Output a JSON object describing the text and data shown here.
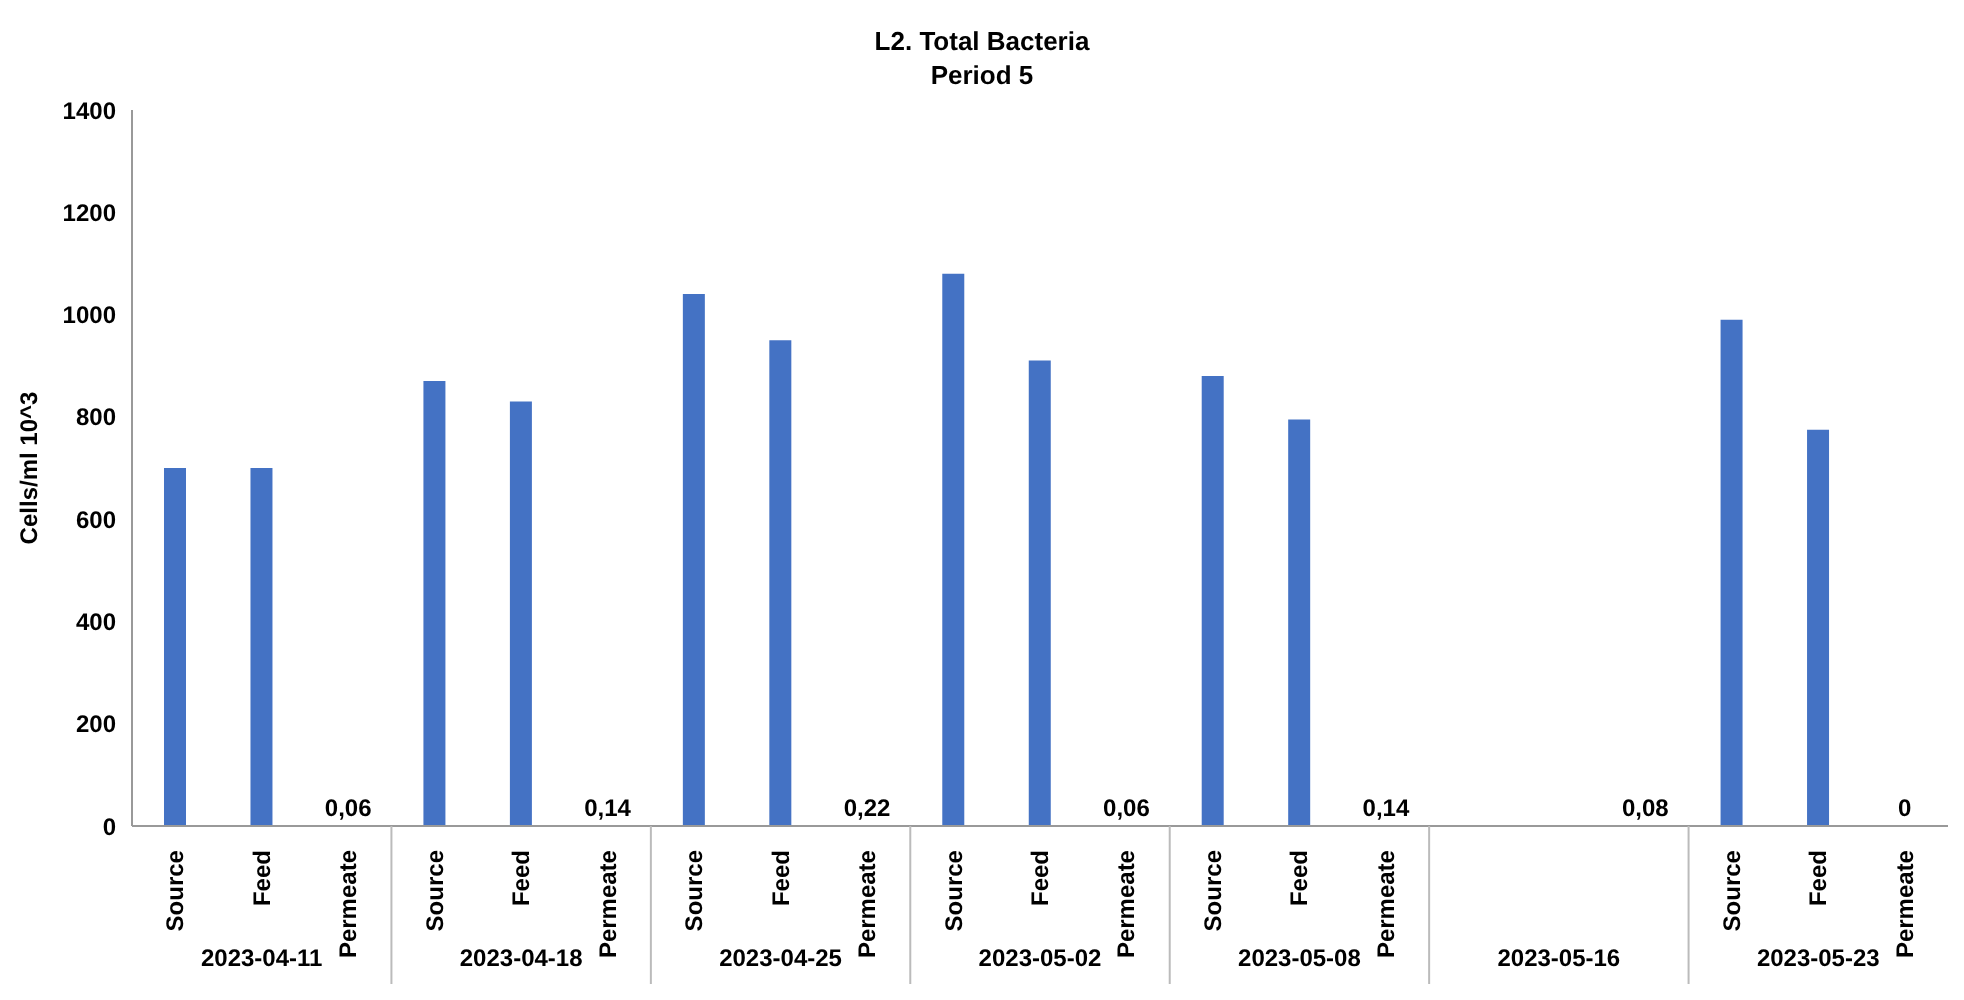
{
  "chart_data": {
    "type": "bar",
    "title": "L2. Total Bacteria",
    "subtitle": "Period 5",
    "ylabel": "Cells/ml 10^3",
    "categories": [
      "Source",
      "Feed",
      "Permeate",
      "Source",
      "Feed",
      "Permeate",
      "Source",
      "Feed",
      "Permeate",
      "Source",
      "Feed",
      "Permeate",
      "Source",
      "Feed",
      "Permeate",
      null,
      null,
      null,
      "Source",
      "Feed",
      "Permeate"
    ],
    "annotations": [
      "2023-04-11",
      "2023-04-18",
      "2023-04-25",
      "2023-05-02",
      "2023-05-08",
      "2023-05-16",
      "2023-05-23"
    ],
    "series": [
      {
        "color": "#4472c4",
        "values": [
          700,
          700,
          0.06,
          870,
          830,
          0.14,
          1040,
          950,
          0.22,
          1080,
          910,
          0.06,
          880,
          795,
          0.14,
          null,
          null,
          0.08,
          990,
          775,
          0
        ],
        "value_labels": [
          null,
          null,
          "0,06",
          null,
          null,
          "0,14",
          null,
          null,
          "0,22",
          null,
          null,
          "0,06",
          null,
          null,
          "0,14",
          null,
          null,
          "0,08",
          null,
          null,
          "0"
        ]
      }
    ],
    "ylim": [
      0,
      1400
    ],
    "yticks": [
      0,
      200,
      400,
      600,
      800,
      1000,
      1200,
      1400
    ],
    "grid": false,
    "legend": false
  }
}
